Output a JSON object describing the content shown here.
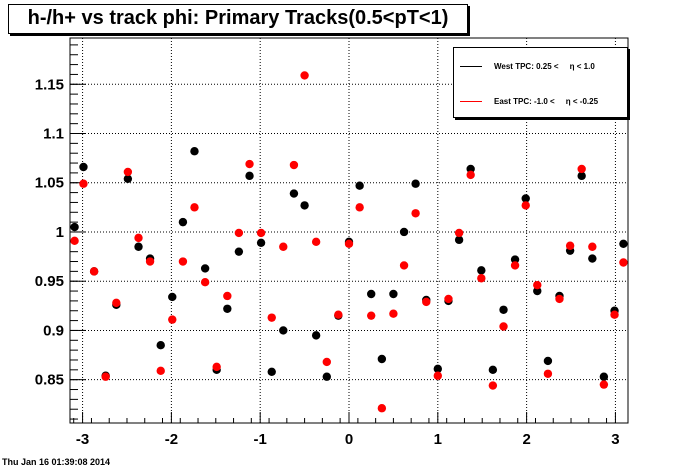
{
  "title": "h-/h+ vs track phi: Primary Tracks(0.5<pT<1)",
  "footer": "Thu Jan 16 01:39:08 2014",
  "legend": [
    {
      "label": "West TPC: 0.25 <     η < 1.0",
      "color": "#000000"
    },
    {
      "label": "East TPC: -1.0 <     η < -0.25",
      "color": "#ff0000"
    }
  ],
  "chart_data": {
    "type": "scatter",
    "xlim": [
      -3.1416,
      3.1416
    ],
    "ylim": [
      0.806,
      1.197
    ],
    "grid": true,
    "legend_position": "top-right",
    "x_ticks": [
      -3,
      -2,
      -1,
      0,
      1,
      2,
      3
    ],
    "x_tick_labels": [
      "-3",
      "-2",
      "-1",
      "0",
      "1",
      "2",
      "3"
    ],
    "y_ticks": [
      0.85,
      0.9,
      0.95,
      1.0,
      1.05,
      1.1,
      1.15
    ],
    "y_tick_labels": [
      "0.85",
      "0.9",
      "0.95",
      "1",
      "1.05",
      "1.1",
      "1.15"
    ],
    "series": [
      {
        "name": "West TPC: 0.25 <     η < 1.0",
        "color": "#000000",
        "x": [
          -3.09,
          -2.99,
          -2.87,
          -2.74,
          -2.62,
          -2.49,
          -2.37,
          -2.24,
          -2.12,
          -1.99,
          -1.87,
          -1.74,
          -1.62,
          -1.49,
          -1.37,
          -1.24,
          -1.12,
          -0.99,
          -0.87,
          -0.74,
          -0.62,
          -0.5,
          -0.37,
          -0.25,
          -0.12,
          0.0,
          0.12,
          0.25,
          0.37,
          0.5,
          0.62,
          0.75,
          0.87,
          1.0,
          1.12,
          1.24,
          1.37,
          1.49,
          1.62,
          1.74,
          1.87,
          1.99,
          2.12,
          2.24,
          2.37,
          2.49,
          2.62,
          2.74,
          2.87,
          2.99,
          3.09
        ],
        "y": [
          1.005,
          1.066,
          0.96,
          0.854,
          0.926,
          1.054,
          0.985,
          0.973,
          0.885,
          0.934,
          1.01,
          1.082,
          0.963,
          0.86,
          0.922,
          0.98,
          1.057,
          0.989,
          0.858,
          0.9,
          1.039,
          1.027,
          0.895,
          0.853,
          0.915,
          0.99,
          1.047,
          0.937,
          0.871,
          0.937,
          1.0,
          1.049,
          0.931,
          0.861,
          0.93,
          0.992,
          1.064,
          0.961,
          0.86,
          0.921,
          0.972,
          1.034,
          0.94,
          0.869,
          0.935,
          0.981,
          1.057,
          0.973,
          0.853,
          0.92,
          0.988
        ]
      },
      {
        "name": "East TPC: -1.0 <     η < -0.25",
        "color": "#ff0000",
        "x": [
          -3.09,
          -2.99,
          -2.87,
          -2.74,
          -2.62,
          -2.49,
          -2.37,
          -2.24,
          -2.12,
          -1.99,
          -1.87,
          -1.74,
          -1.62,
          -1.49,
          -1.37,
          -1.24,
          -1.12,
          -0.99,
          -0.87,
          -0.74,
          -0.62,
          -0.5,
          -0.37,
          -0.25,
          -0.12,
          0.0,
          0.12,
          0.25,
          0.37,
          0.5,
          0.62,
          0.75,
          0.87,
          1.0,
          1.12,
          1.24,
          1.37,
          1.49,
          1.62,
          1.74,
          1.87,
          1.99,
          2.12,
          2.24,
          2.37,
          2.49,
          2.62,
          2.74,
          2.87,
          2.99,
          3.09
        ],
        "y": [
          0.991,
          1.049,
          0.96,
          0.853,
          0.928,
          1.061,
          0.994,
          0.97,
          0.859,
          0.911,
          0.97,
          1.025,
          0.949,
          0.863,
          0.935,
          0.999,
          1.069,
          0.999,
          0.913,
          0.985,
          1.068,
          1.159,
          0.99,
          0.868,
          0.916,
          0.988,
          1.025,
          0.915,
          0.821,
          0.917,
          0.966,
          1.019,
          0.929,
          0.854,
          0.932,
          0.999,
          1.058,
          0.953,
          0.844,
          0.904,
          0.966,
          1.027,
          0.946,
          0.856,
          0.932,
          0.986,
          1.064,
          0.985,
          0.845,
          0.916,
          0.969
        ]
      }
    ]
  }
}
